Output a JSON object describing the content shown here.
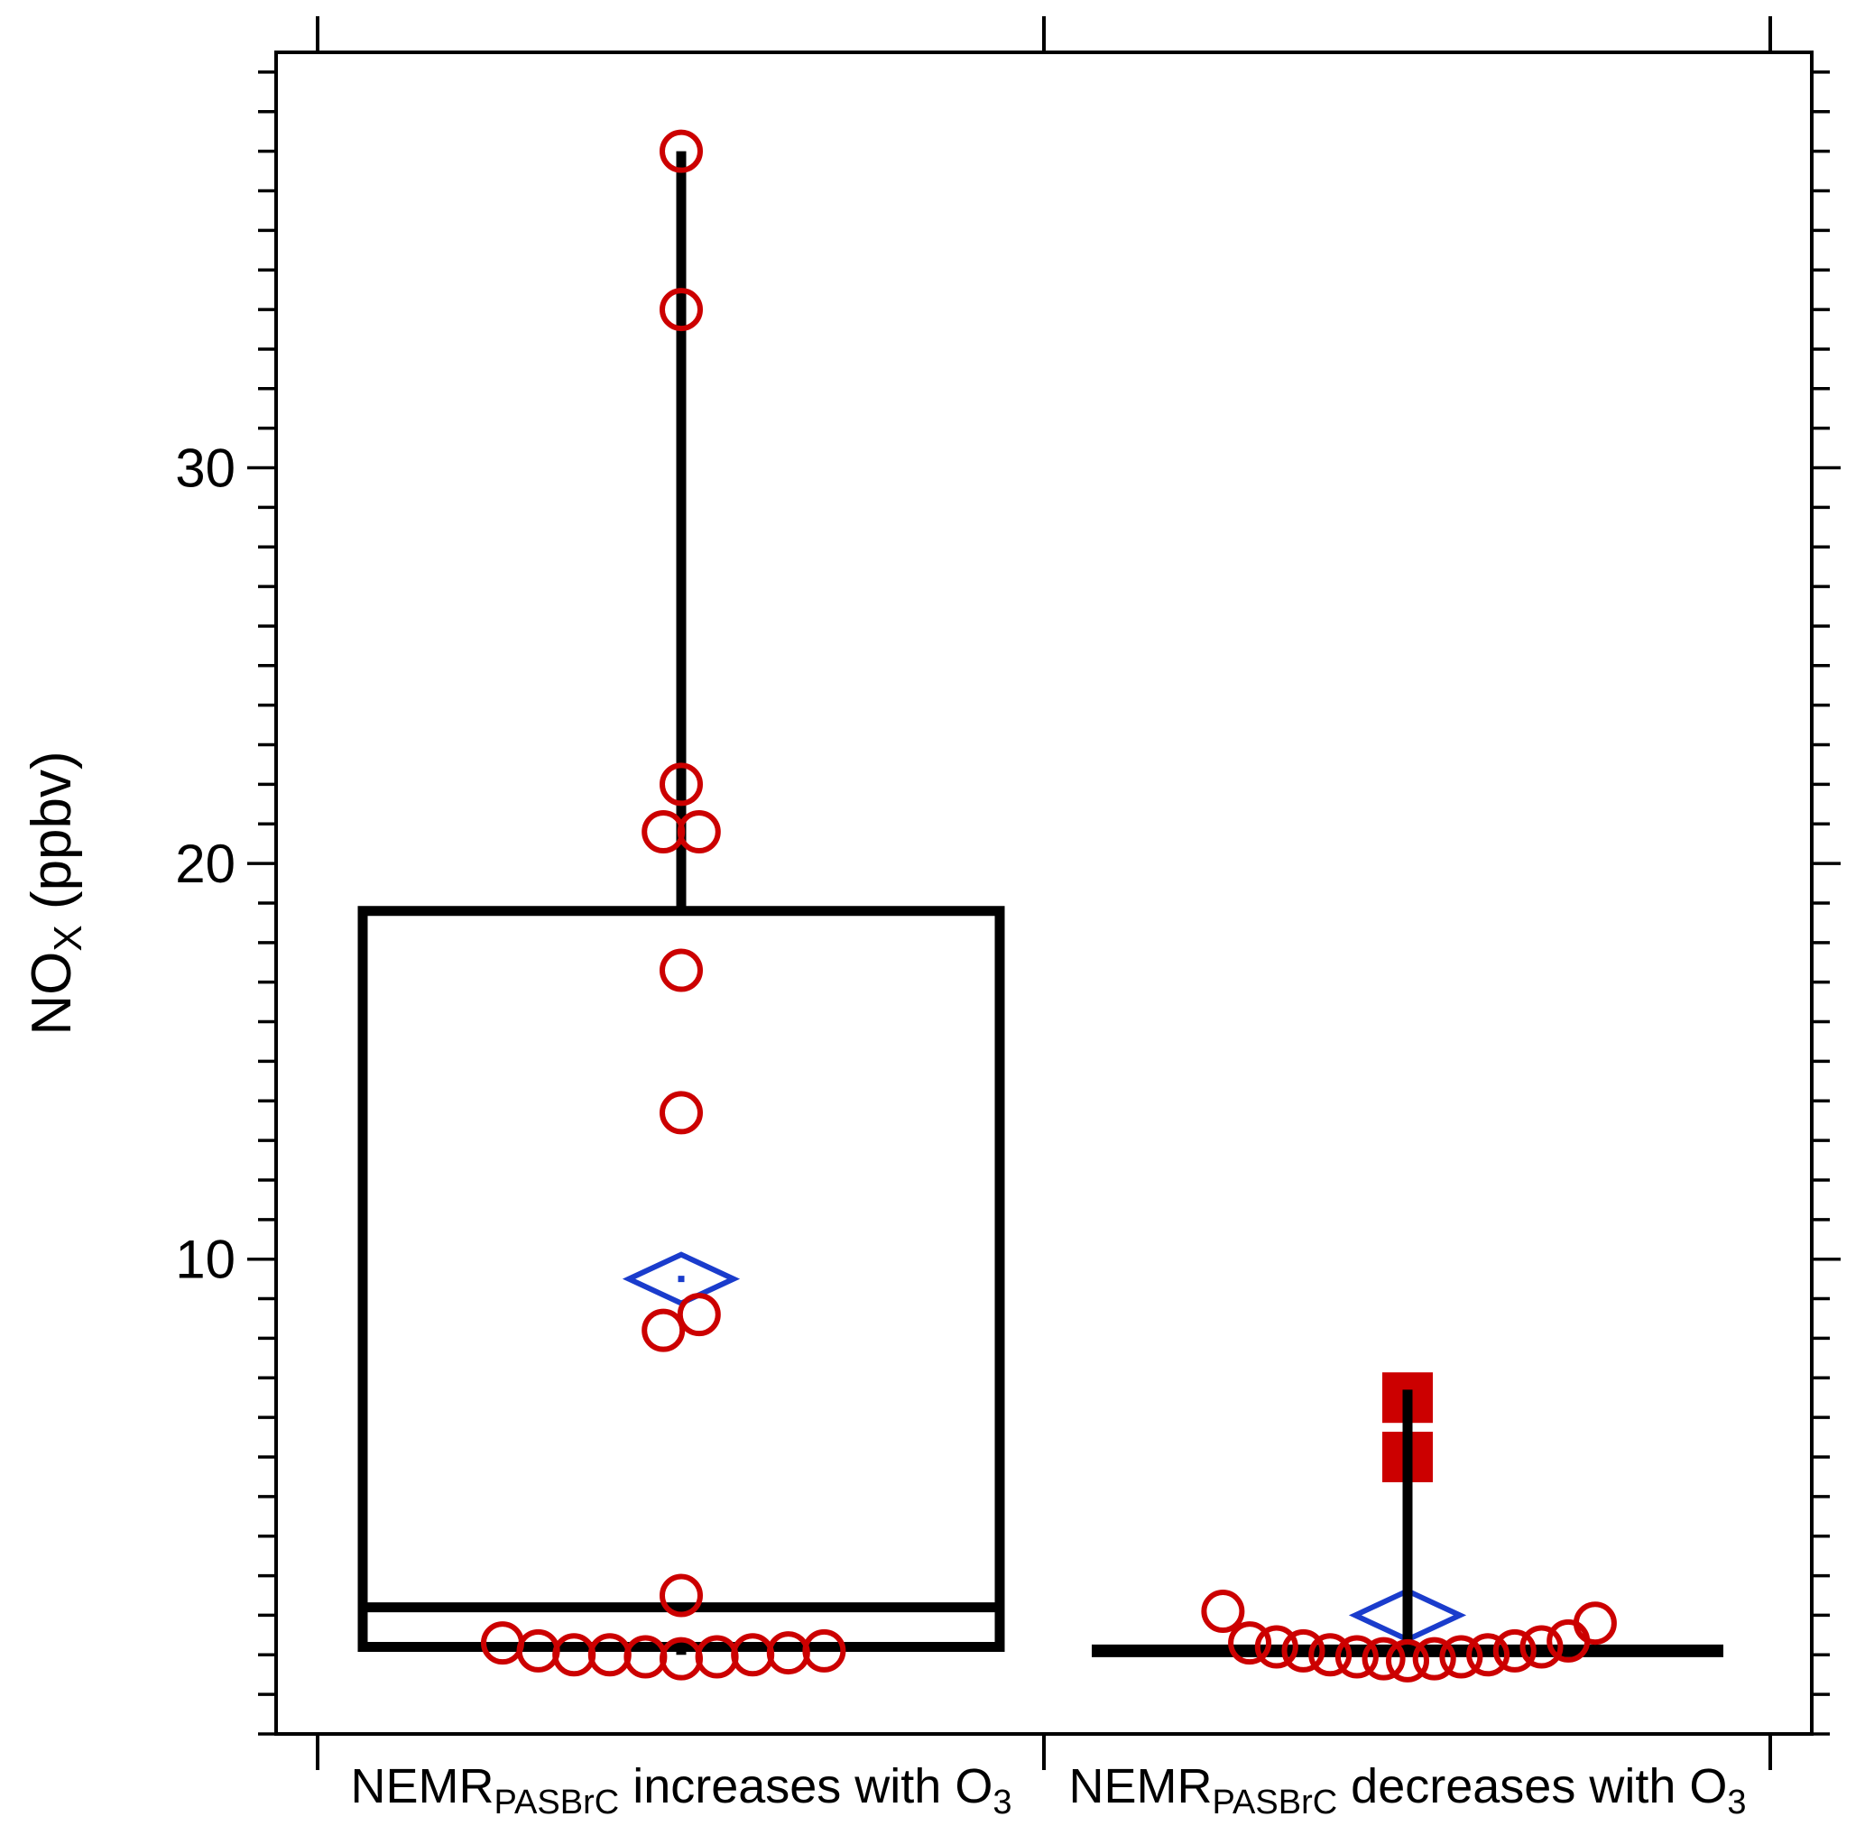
{
  "chart_data": {
    "type": "box",
    "ylabel": {
      "main": "NO",
      "sub": "X",
      "unit": " (ppbv)"
    },
    "ylim": [
      -2.0,
      40.5
    ],
    "yticks": [
      10,
      20,
      30
    ],
    "ytick_labels": [
      "10",
      "20",
      "30"
    ],
    "minor_tick_step": 1,
    "grid": false,
    "categories": [
      {
        "label": {
          "pre": "NEMR",
          "sub": "PASBrC",
          "mid": " increases with O",
          "sub2": "3"
        },
        "box": {
          "q1": 0.2,
          "median": 1.2,
          "q3": 18.8
        },
        "whisker": {
          "low": 0.0,
          "high": 38.0
        },
        "mean": 9.5,
        "points": [
          {
            "offset": 0.0,
            "y": 38.0
          },
          {
            "offset": 0.0,
            "y": 34.0
          },
          {
            "offset": 0.0,
            "y": 22.0
          },
          {
            "offset": -0.06,
            "y": 20.8
          },
          {
            "offset": 0.06,
            "y": 20.8
          },
          {
            "offset": 0.0,
            "y": 17.3
          },
          {
            "offset": 0.0,
            "y": 13.7
          },
          {
            "offset": -0.06,
            "y": 8.2
          },
          {
            "offset": 0.06,
            "y": 8.6
          },
          {
            "offset": 0.0,
            "y": 1.5
          },
          {
            "offset": -0.6,
            "y": 0.3
          },
          {
            "offset": -0.48,
            "y": 0.1
          },
          {
            "offset": -0.36,
            "y": 0.0
          },
          {
            "offset": -0.24,
            "y": 0.0
          },
          {
            "offset": -0.12,
            "y": -0.05
          },
          {
            "offset": 0.0,
            "y": -0.1
          },
          {
            "offset": 0.12,
            "y": -0.05
          },
          {
            "offset": 0.24,
            "y": 0.0
          },
          {
            "offset": 0.36,
            "y": 0.05
          },
          {
            "offset": 0.48,
            "y": 0.1
          }
        ],
        "outliers": []
      },
      {
        "label": {
          "pre": "NEMR",
          "sub": "PASBrC",
          "mid": " decreases with O",
          "sub2": "3"
        },
        "box": {
          "q1": 0.1,
          "median": 0.1,
          "q3": 0.1
        },
        "whisker": {
          "low": 0.0,
          "high": 6.7
        },
        "mean": 1.0,
        "points": [
          {
            "offset": -0.62,
            "y": 1.1
          },
          {
            "offset": -0.53,
            "y": 0.3
          },
          {
            "offset": -0.44,
            "y": 0.2
          },
          {
            "offset": -0.35,
            "y": 0.1
          },
          {
            "offset": -0.26,
            "y": 0.0
          },
          {
            "offset": -0.17,
            "y": -0.05
          },
          {
            "offset": -0.08,
            "y": -0.1
          },
          {
            "offset": 0.0,
            "y": -0.15
          },
          {
            "offset": 0.09,
            "y": -0.1
          },
          {
            "offset": 0.18,
            "y": -0.05
          },
          {
            "offset": 0.27,
            "y": 0.0
          },
          {
            "offset": 0.36,
            "y": 0.1
          },
          {
            "offset": 0.45,
            "y": 0.2
          },
          {
            "offset": 0.54,
            "y": 0.35
          },
          {
            "offset": 0.63,
            "y": 0.8
          }
        ],
        "outliers": [
          6.5,
          5.0
        ]
      }
    ]
  },
  "colors": {
    "box": "#000000",
    "points": "#cc0000",
    "mean": "#1a3ccc",
    "outlier": "#cc0000"
  }
}
